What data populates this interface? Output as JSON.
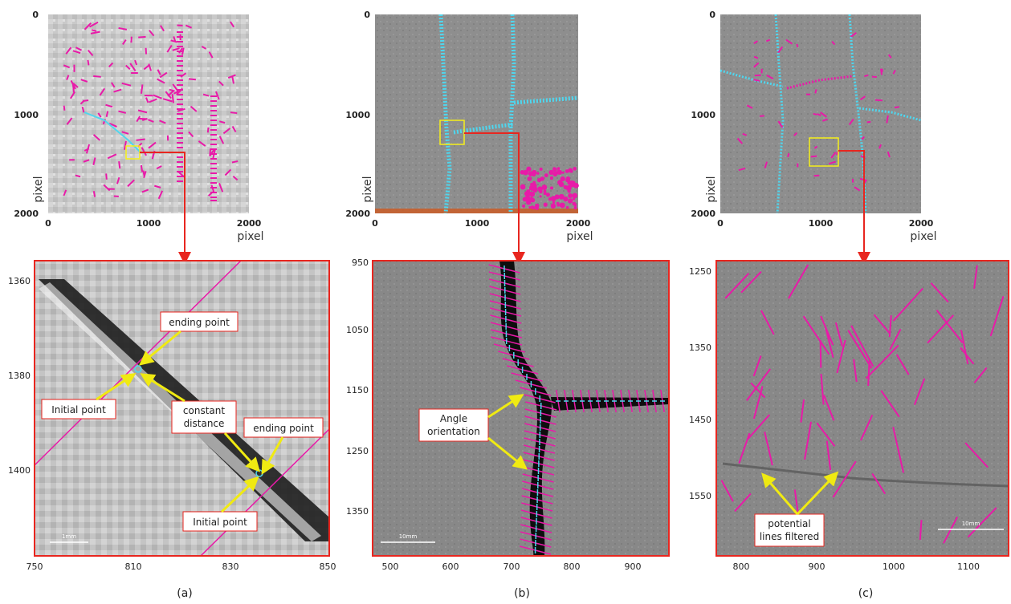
{
  "panels": [
    {
      "caption": "(a)",
      "overview": {
        "y_ticks": [
          "0",
          "1000",
          "2000"
        ],
        "x_ticks": [
          "0",
          "1000",
          "2000"
        ],
        "x_label": "pixel",
        "y_label": "pixel"
      },
      "zoom": {
        "y_ticks": [
          "1360",
          "1380",
          "1400"
        ],
        "x_ticks": [
          "750",
          "810",
          "830",
          "850"
        ],
        "scale_bar": "1mm",
        "annotations": [
          "ending point",
          "Initial point",
          "constant\ndistance",
          "ending point",
          "Initial point"
        ]
      }
    },
    {
      "caption": "(b)",
      "overview": {
        "y_ticks": [
          "0",
          "1000",
          "2000"
        ],
        "x_ticks": [
          "0",
          "1000",
          "2000"
        ],
        "x_label": "pixel",
        "y_label": "pixel"
      },
      "zoom": {
        "y_ticks": [
          "950",
          "1050",
          "1150",
          "1250",
          "1350"
        ],
        "x_ticks": [
          "500",
          "600",
          "700",
          "800",
          "900"
        ],
        "scale_bar": "10mm",
        "annotations": [
          "Angle\norientation"
        ]
      }
    },
    {
      "caption": "(c)",
      "overview": {
        "y_ticks": [
          "0",
          "1000",
          "2000"
        ],
        "x_ticks": [
          "0",
          "1000",
          "2000"
        ],
        "x_label": "pixel",
        "y_label": "pixel"
      },
      "zoom": {
        "y_ticks": [
          "1250",
          "1350",
          "1450",
          "1550"
        ],
        "x_ticks": [
          "800",
          "900",
          "1000",
          "1100"
        ],
        "scale_bar": "10mm",
        "annotations": [
          "potential\nlines filtered"
        ]
      }
    }
  ],
  "colors": {
    "frame": "#e8261f",
    "highlight_box": "#f5ef1a",
    "crack_lines": "#4fd6ee",
    "filtered_lines": "#e81aa8",
    "arrow": "#f0ea12"
  }
}
